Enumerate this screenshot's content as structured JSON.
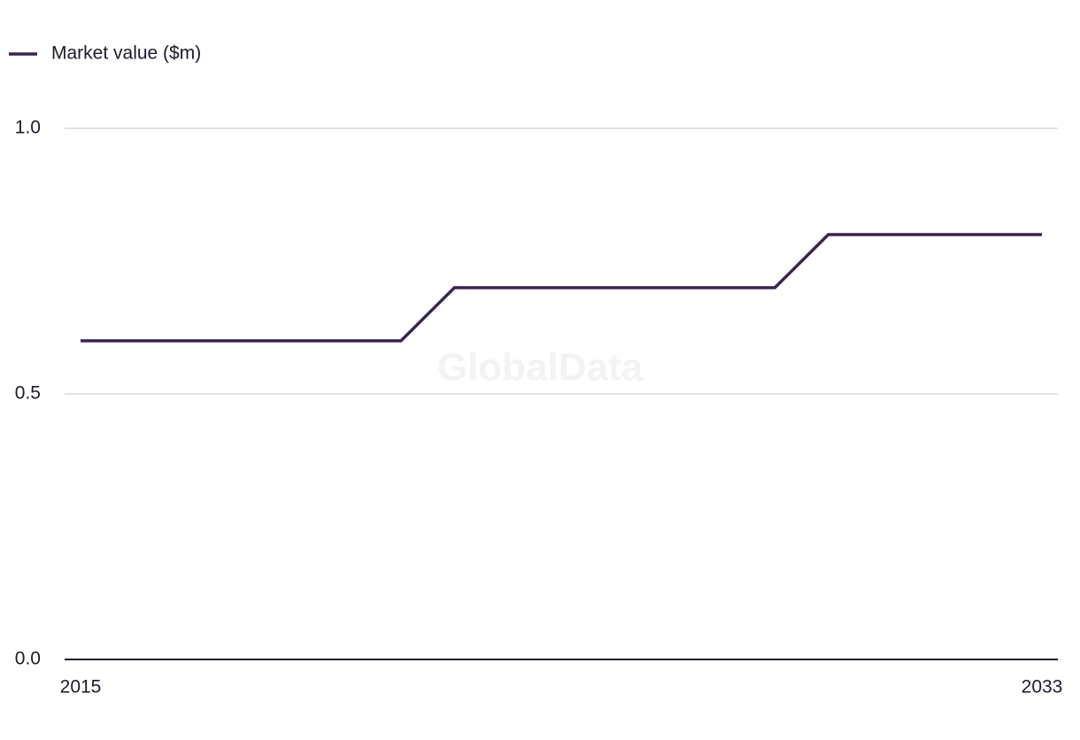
{
  "chart_data": {
    "type": "line",
    "watermark": "GlobalData",
    "x": [
      2015,
      2016,
      2017,
      2018,
      2019,
      2020,
      2021,
      2022,
      2023,
      2024,
      2025,
      2026,
      2027,
      2028,
      2029,
      2030,
      2031,
      2032,
      2033
    ],
    "series": [
      {
        "name": "Market value ($m)",
        "color": "#3a2450",
        "values": [
          0.6,
          0.6,
          0.6,
          0.6,
          0.6,
          0.6,
          0.6,
          0.7,
          0.7,
          0.7,
          0.7,
          0.7,
          0.7,
          0.7,
          0.8,
          0.8,
          0.8,
          0.8,
          0.8
        ]
      }
    ],
    "xlim": [
      2015,
      2033
    ],
    "xticks": [
      2015,
      2033
    ],
    "ylim": [
      0,
      1
    ],
    "yticks": [
      {
        "value": 0,
        "label": "0.0"
      },
      0.5,
      {
        "value": 1,
        "label": "1.0"
      }
    ],
    "grid": true,
    "legend": "top-left"
  }
}
